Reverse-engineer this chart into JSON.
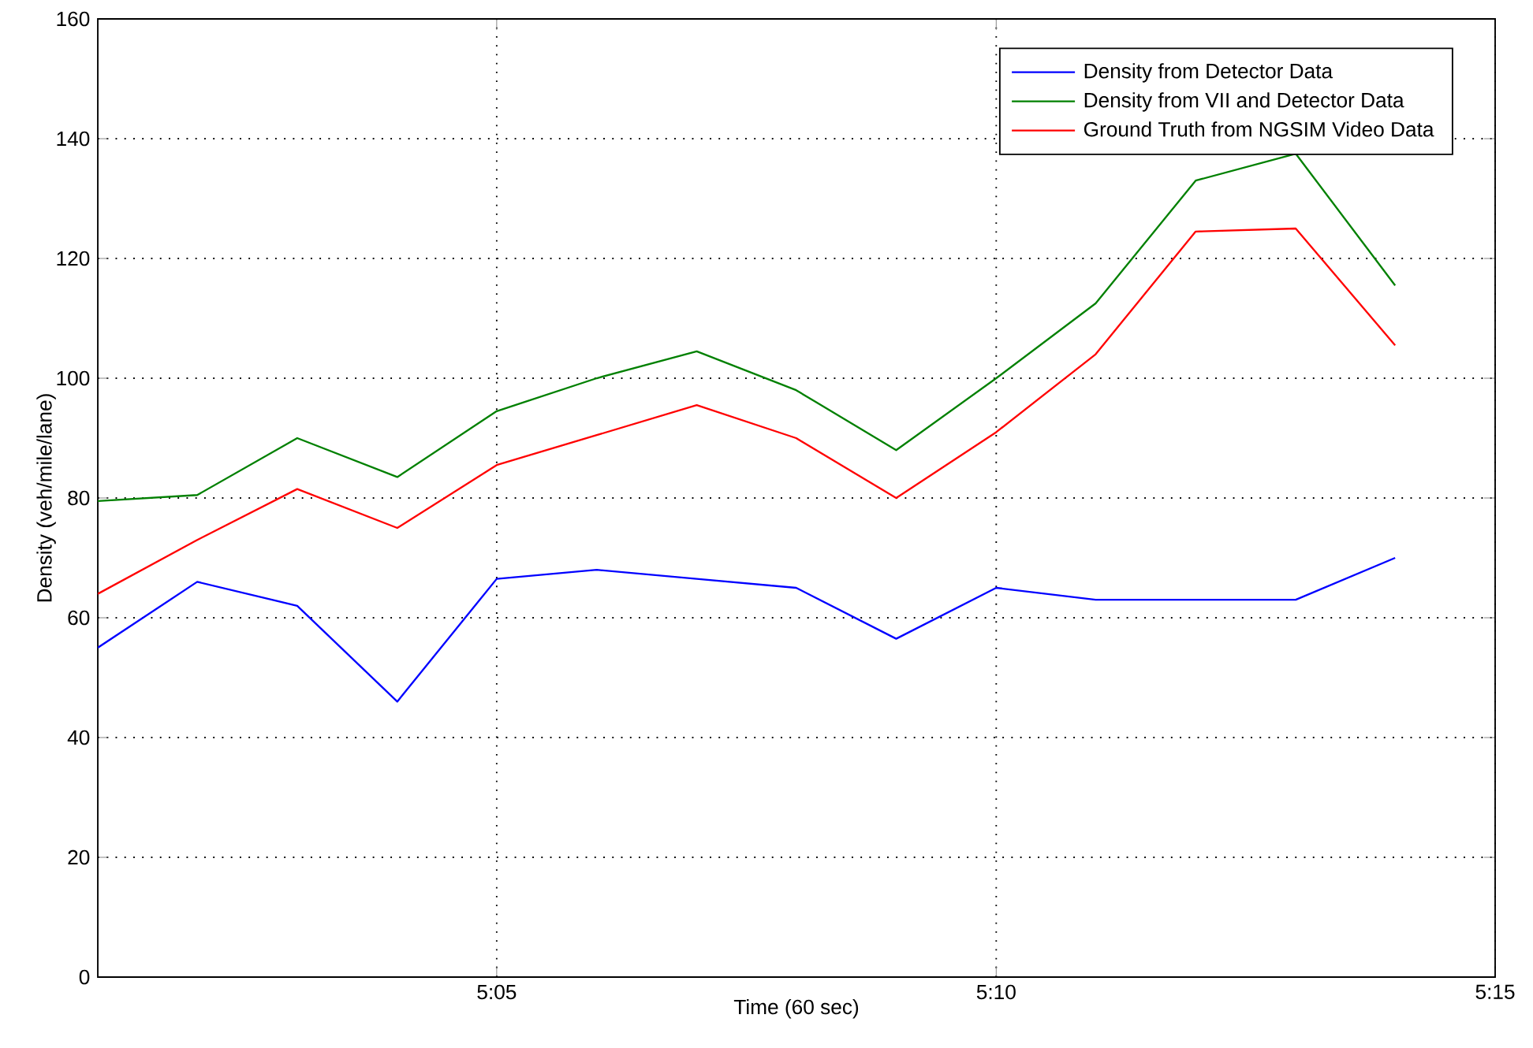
{
  "chart_data": {
    "type": "line",
    "xlabel": "Time (60 sec)",
    "ylabel": "Density (veh/mile/lane)",
    "x": [
      5.0167,
      5.0333,
      5.05,
      5.0667,
      5.0833,
      5.1,
      5.1167,
      5.1333,
      5.15,
      5.1667,
      5.1833,
      5.2,
      5.2167,
      5.2333
    ],
    "series": [
      {
        "name": "Density from Detector Data",
        "color": "#0000ff",
        "values": [
          55,
          66,
          62,
          46,
          66.5,
          68,
          66.5,
          65,
          56.5,
          65,
          63,
          63,
          63,
          70
        ]
      },
      {
        "name": "Density from VII and Detector Data",
        "color": "#008000",
        "values": [
          79.5,
          80.5,
          90,
          83.5,
          94.5,
          100,
          104.5,
          98,
          88,
          100,
          112.5,
          133,
          137.5,
          115.5
        ]
      },
      {
        "name": "Ground Truth from NGSIM Video Data",
        "color": "#ff0000",
        "values": [
          64,
          73,
          81.5,
          75,
          85.5,
          90.5,
          95.5,
          90,
          80,
          91,
          104,
          124.5,
          125,
          105.5
        ]
      }
    ],
    "xlim": [
      5.0167,
      5.25
    ],
    "xticks": [
      {
        "value": 5.0833,
        "label": "5:05"
      },
      {
        "value": 5.1667,
        "label": "5:10"
      },
      {
        "value": 5.25,
        "label": "5:15"
      }
    ],
    "ylim": [
      0,
      160
    ],
    "yticks": [
      0,
      20,
      40,
      60,
      80,
      100,
      120,
      140,
      160
    ],
    "grid": true,
    "legend": "top right",
    "marker": "none",
    "line_style": "solid"
  }
}
